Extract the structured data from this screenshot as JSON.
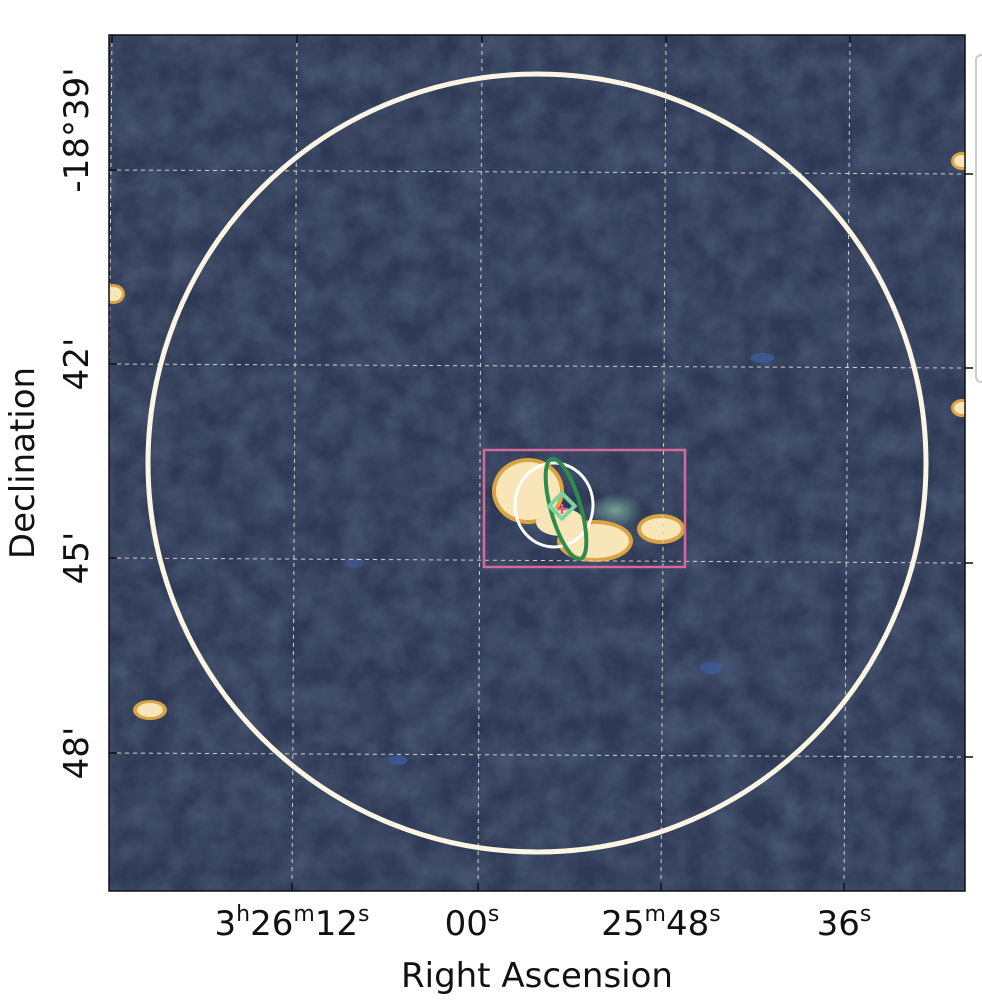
{
  "chart_data": {
    "type": "image",
    "xlabel": "Right Ascension",
    "ylabel": "Declination",
    "grid": true,
    "x_ticks": [
      {
        "h": "3",
        "m": "26",
        "s": "12"
      },
      {
        "h": "",
        "m": "",
        "s": "00"
      },
      {
        "h": "",
        "m": "25",
        "s": "48"
      },
      {
        "h": "",
        "m": "",
        "s": "36"
      }
    ],
    "y_ticks": [
      "-18°39'",
      "42'",
      "45'",
      "48'"
    ],
    "unit_marks": {
      "h": "h",
      "m": "m",
      "s": "s"
    },
    "colors": {
      "background": "#2e3a55",
      "large_circle": "#faf6e3",
      "box": "#d46a9a",
      "white_ellipse": "#ffffff",
      "green_ellipse": "#2e8b4e",
      "diamond": "#7fd3a0",
      "cross": "#e06080",
      "source_fill": "#f9e6b8",
      "source_edge": "#d9a441"
    },
    "legend": {
      "placement": "right",
      "entries": []
    }
  }
}
